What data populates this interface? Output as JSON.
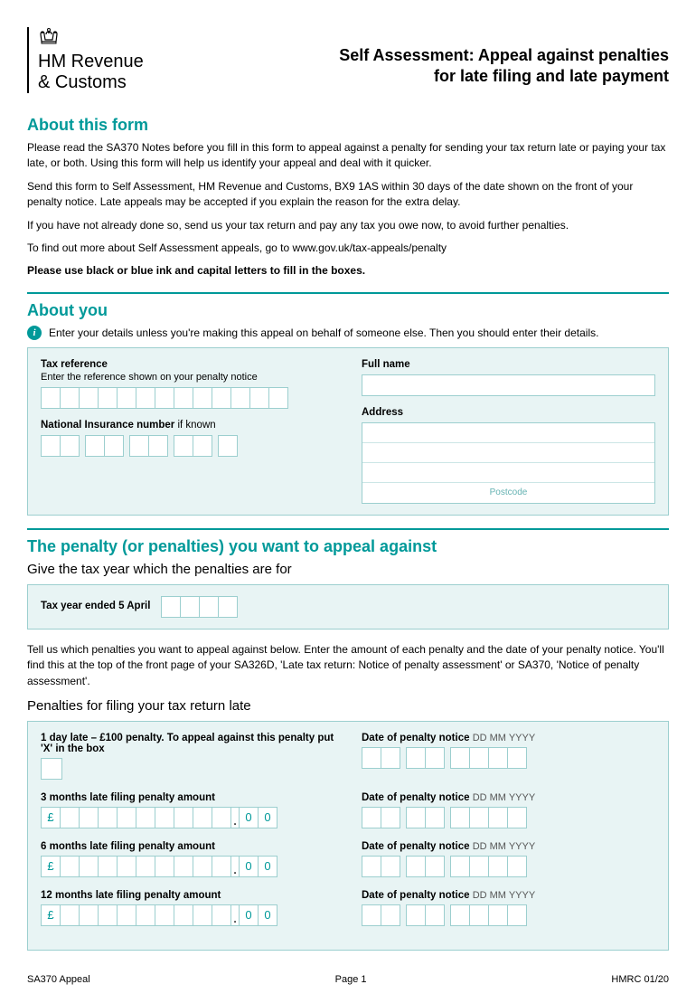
{
  "header": {
    "org_line1": "HM Revenue",
    "org_line2": "& Customs",
    "title_line1": "Self Assessment: Appeal against penalties",
    "title_line2": "for late filing and late payment"
  },
  "about_form": {
    "heading": "About this form",
    "p1": "Please read the SA370 Notes before you fill in this form to appeal against a penalty for sending your tax return late or paying your tax late, or both. Using this form will help us identify your appeal and deal with it quicker.",
    "p2": "Send this form to Self Assessment, HM Revenue and Customs, BX9 1AS within 30 days of the date shown on the front of your penalty notice. Late appeals may be accepted if you explain the reason for the extra delay.",
    "p3": "If you have not already done so, send us your tax return and pay any tax you owe now, to avoid further penalties.",
    "p4": "To find out more about Self Assessment appeals, go to www.gov.uk/tax-appeals/penalty",
    "p5": "Please use black or blue ink and capital letters to fill in the boxes."
  },
  "about_you": {
    "heading": "About you",
    "info": "Enter your details unless you're making this appeal on behalf of someone else. Then you should enter their details.",
    "tax_ref_label": "Tax reference",
    "tax_ref_sub": "Enter the reference shown on your penalty notice",
    "tax_ref_boxes": 13,
    "ni_label": "National Insurance number",
    "ni_suffix": " if known",
    "ni_groups": [
      2,
      2,
      2,
      2,
      1
    ],
    "fullname_label": "Full name",
    "address_label": "Address",
    "postcode_label": "Postcode"
  },
  "penalties": {
    "heading": "The penalty (or penalties) you want to appeal against",
    "sub1": "Give the tax year which the penalties are for",
    "tax_year_label": "Tax year ended 5 April",
    "tax_year_boxes": 4,
    "body": "Tell us which penalties you want to appeal against below. Enter the amount of each penalty and the date of your penalty notice. You'll find this at the top of the front page of your SA326D, 'Late tax return: Notice of penalty assessment' or SA370, 'Notice of penalty assessment'.",
    "sub2": "Penalties for filing your tax return late",
    "date_label": "Date of penalty notice",
    "date_hint": "DD MM YYYY",
    "date_groups": [
      2,
      2,
      4
    ],
    "currency_symbol": "£",
    "decimal_zero": "0",
    "amount_int_boxes": 9,
    "rows": [
      {
        "label": "1 day late – £100 penalty. To appeal against this penalty put 'X' in the box",
        "type": "checkbox"
      },
      {
        "label": "3 months late filing penalty amount",
        "type": "currency"
      },
      {
        "label": "6 months late filing penalty amount",
        "type": "currency"
      },
      {
        "label": "12 months late filing penalty amount",
        "type": "currency"
      }
    ]
  },
  "footer": {
    "left": "SA370 Appeal",
    "center": "Page 1",
    "right": "HMRC 01/20"
  },
  "colors": {
    "teal": "#009999",
    "panel_bg": "#e8f4f4",
    "panel_border": "#9ccfcf"
  }
}
